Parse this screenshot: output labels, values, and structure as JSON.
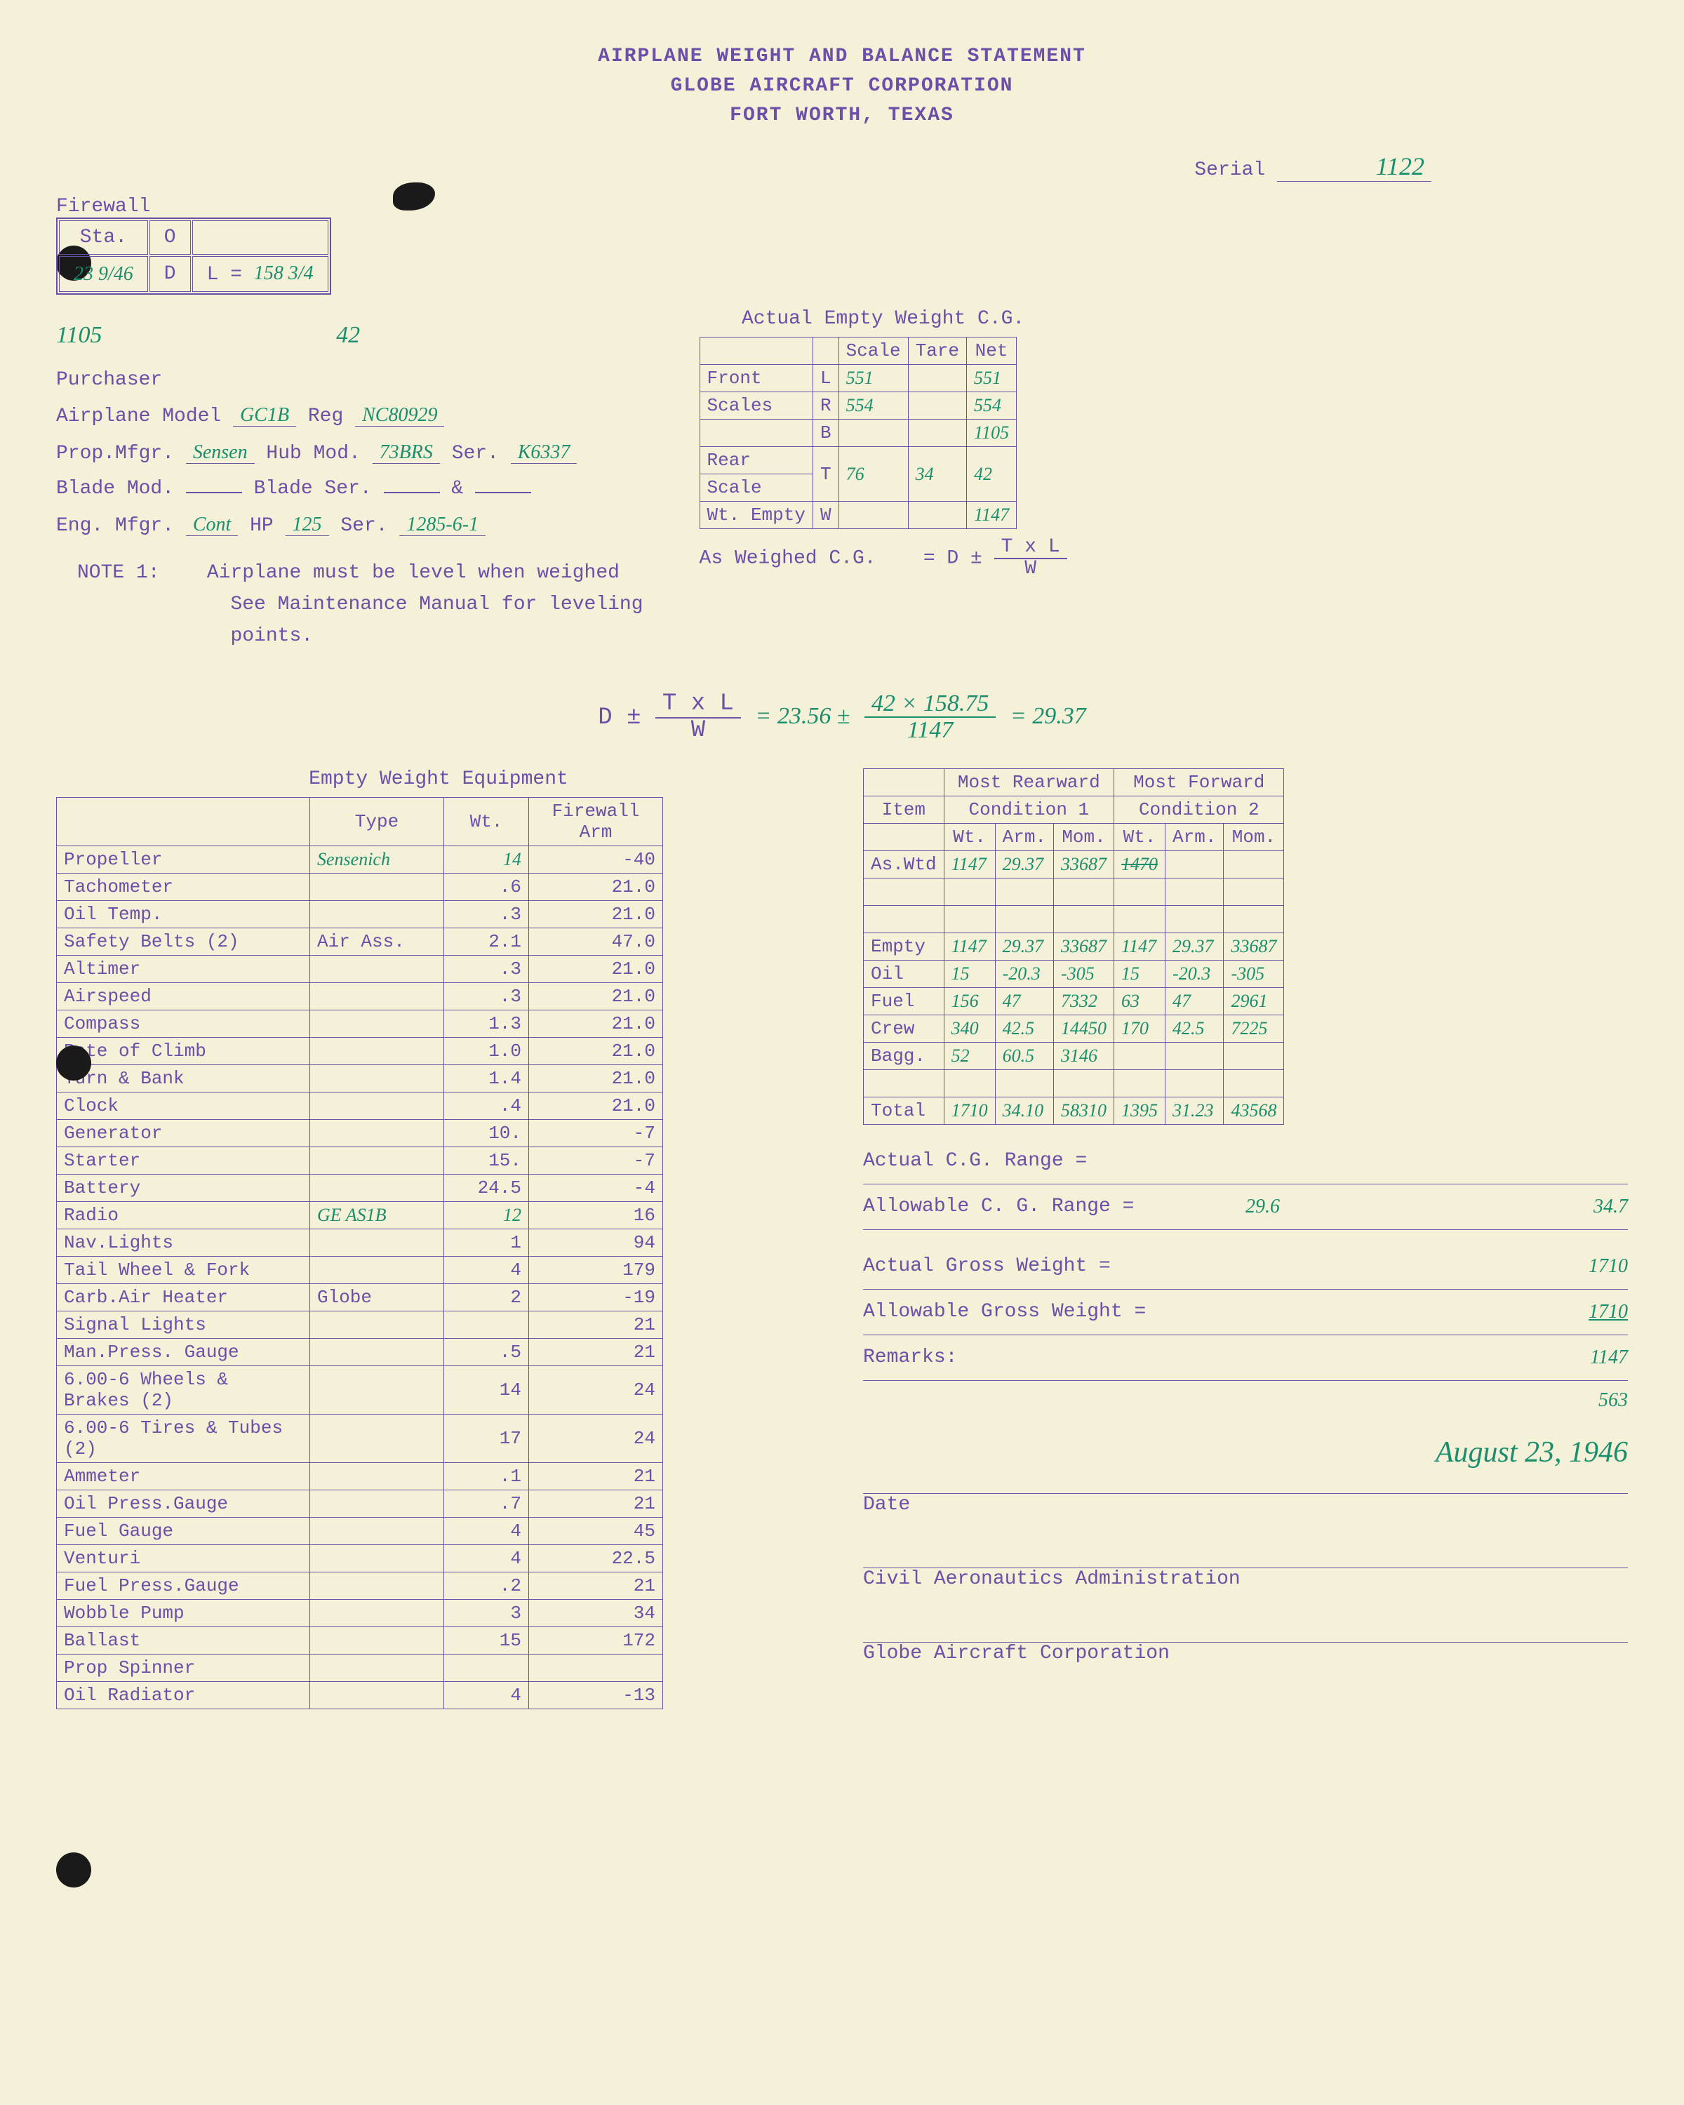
{
  "header": {
    "line1": "AIRPLANE WEIGHT AND BALANCE STATEMENT",
    "line2": "GLOBE AIRCRAFT CORPORATION",
    "line3": "FORT WORTH, TEXAS"
  },
  "serial": {
    "label": "Serial",
    "value": "1122"
  },
  "firewall": {
    "title": "Firewall",
    "sta_label": "Sta.",
    "o_label": "O",
    "d_label": "D",
    "l_label": "L =",
    "date": "23 9/46",
    "lval": "158 3/4",
    "below1": "1105",
    "below2": "42"
  },
  "info": {
    "purchaser_label": "Purchaser",
    "model_label": "Airplane Model",
    "model": "GC1B",
    "reg_label": "Reg",
    "reg": "NC80929",
    "propmfg_label": "Prop.Mfgr.",
    "propmfg": "Sensen",
    "hubmod_label": "Hub Mod.",
    "hubmod": "73BRS",
    "ser_label": "Ser.",
    "hubser": "K6337",
    "blademod_label": "Blade Mod.",
    "bladeser_label": "Blade Ser.",
    "amp": "&",
    "engmfg_label": "Eng. Mfgr.",
    "engmfg": "Cont",
    "hp_label": "HP",
    "hp": "125",
    "engser": "1285-6-1"
  },
  "note": {
    "label": "NOTE 1:",
    "text1": "Airplane must be level when weighed",
    "text2": "See Maintenance Manual for leveling",
    "text3": "points."
  },
  "scaletable": {
    "title": "Actual Empty Weight C.G.",
    "h_scale": "Scale",
    "h_tare": "Tare",
    "h_net": "Net",
    "front_label": "Front",
    "scales_label": "Scales",
    "rear_label": "Rear",
    "scale_label": "Scale",
    "wtempty_label": "Wt. Empty",
    "L": "L",
    "R": "R",
    "B": "B",
    "T": "T",
    "W": "W",
    "front_scale": "551",
    "front_net": "551",
    "scales_scale": "554",
    "scales_net": "554",
    "b_net": "1105",
    "rear_scale": "76",
    "rear_tare": "34",
    "rear_net": "42",
    "wtempty_net": "1147",
    "formula_label": "As Weighed C.G.",
    "formula_eq": "= D ±",
    "formula_num": "T x L",
    "formula_den": "W"
  },
  "calc": {
    "lhs_num": "T x L",
    "lhs_den": "W",
    "dpm": "D ±",
    "d": "23.56 ±",
    "num": "42 × 158.75",
    "den": "1147",
    "result": "= 29.37"
  },
  "equip": {
    "title": "Empty Weight Equipment",
    "h_type": "Type",
    "h_wt": "Wt.",
    "h_arm": "Firewall\nArm",
    "rows": [
      {
        "n": "Propeller",
        "t": "Sensenich",
        "w": "14",
        "a": "-40"
      },
      {
        "n": "Tachometer",
        "t": "",
        "w": ".6",
        "a": "21.0"
      },
      {
        "n": "Oil Temp.",
        "t": "",
        "w": ".3",
        "a": "21.0"
      },
      {
        "n": "Safety Belts (2)",
        "t": "Air Ass.",
        "w": "2.1",
        "a": "47.0"
      },
      {
        "n": "Altimer",
        "t": "",
        "w": ".3",
        "a": "21.0"
      },
      {
        "n": "Airspeed",
        "t": "",
        "w": ".3",
        "a": "21.0"
      },
      {
        "n": "Compass",
        "t": "",
        "w": "1.3",
        "a": "21.0"
      },
      {
        "n": "Rate of Climb",
        "t": "",
        "w": "1.0",
        "a": "21.0"
      },
      {
        "n": "Turn & Bank",
        "t": "",
        "w": "1.4",
        "a": "21.0"
      },
      {
        "n": "Clock",
        "t": "",
        "w": ".4",
        "a": "21.0"
      },
      {
        "n": "Generator",
        "t": "",
        "w": "10.",
        "a": "-7"
      },
      {
        "n": "Starter",
        "t": "",
        "w": "15.",
        "a": "-7"
      },
      {
        "n": "Battery",
        "t": "",
        "w": "24.5",
        "a": "-4"
      },
      {
        "n": "Radio",
        "t": "GE AS1B",
        "w": "12",
        "a": "16"
      },
      {
        "n": "Nav.Lights",
        "t": "",
        "w": "1",
        "a": "94"
      },
      {
        "n": "Tail Wheel & Fork",
        "t": "",
        "w": "4",
        "a": "179"
      },
      {
        "n": "Carb.Air Heater",
        "t": "Globe",
        "w": "2",
        "a": "-19"
      },
      {
        "n": "Signal Lights",
        "t": "",
        "w": "",
        "a": "21"
      },
      {
        "n": "Man.Press. Gauge",
        "t": "",
        "w": ".5",
        "a": "21"
      },
      {
        "n": "6.00-6 Wheels & Brakes (2)",
        "t": "",
        "w": "14",
        "a": "24"
      },
      {
        "n": "6.00-6 Tires & Tubes (2)",
        "t": "",
        "w": "17",
        "a": "24"
      },
      {
        "n": "Ammeter",
        "t": "",
        "w": ".1",
        "a": "21"
      },
      {
        "n": "Oil Press.Gauge",
        "t": "",
        "w": ".7",
        "a": "21"
      },
      {
        "n": "Fuel Gauge",
        "t": "",
        "w": "4",
        "a": "45"
      },
      {
        "n": "Venturi",
        "t": "",
        "w": "4",
        "a": "22.5"
      },
      {
        "n": "Fuel Press.Gauge",
        "t": "",
        "w": ".2",
        "a": "21"
      },
      {
        "n": "Wobble Pump",
        "t": "",
        "w": "3",
        "a": "34"
      },
      {
        "n": "Ballast",
        "t": "",
        "w": "15",
        "a": "172"
      },
      {
        "n": "Prop Spinner",
        "t": "",
        "w": "",
        "a": ""
      },
      {
        "n": "Oil Radiator",
        "t": "",
        "w": "4",
        "a": "-13"
      }
    ]
  },
  "cond": {
    "h_rear": "Most Rearward",
    "h_fwd": "Most Forward",
    "h_item": "Item",
    "h_c1": "Condition 1",
    "h_c2": "Condition 2",
    "h_wt": "Wt.",
    "h_arm": "Arm.",
    "h_mom": "Mom.",
    "aswtd_label": "As.Wtd",
    "aswtd": {
      "w1": "1147",
      "a1": "29.37",
      "m1": "33687",
      "w2": "",
      "a2": "",
      "m2": ""
    },
    "empty_label": "Empty",
    "empty": {
      "w1": "1147",
      "a1": "29.37",
      "m1": "33687",
      "w2": "1147",
      "a2": "29.37",
      "m2": "33687"
    },
    "oil_label": "Oil",
    "oil": {
      "w1": "15",
      "a1": "-20.3",
      "m1": "-305",
      "w2": "15",
      "a2": "-20.3",
      "m2": "-305"
    },
    "fuel_label": "Fuel",
    "fuel": {
      "w1": "156",
      "a1": "47",
      "m1": "7332",
      "w2": "63",
      "a2": "47",
      "m2": "2961"
    },
    "crew_label": "Crew",
    "crew": {
      "w1": "340",
      "a1": "42.5",
      "m1": "14450",
      "8": "",
      "w2": "170",
      "a2": "42.5",
      "m2": "7225"
    },
    "bagg_label": "Bagg.",
    "bagg": {
      "w1": "52",
      "a1": "60.5",
      "m1": "3146",
      "w2": "",
      "a2": "",
      "m2": ""
    },
    "total_label": "Total",
    "total": {
      "w1": "1710",
      "a1": "34.10",
      "m1": "58310",
      "w2": "1395",
      "a2": "31.23",
      "m2": "43568"
    }
  },
  "ranges": {
    "actual_cg_label": "Actual C.G. Range =",
    "allow_cg_label": "Allowable C. G. Range =",
    "allow_cg_lo": "29.6",
    "allow_cg_hi": "34.7",
    "actual_gw_label": "Actual Gross Weight =",
    "actual_gw": "1710",
    "allow_gw_label": "Allowable Gross Weight =",
    "allow_gw": "1710",
    "remarks_label": "Remarks:",
    "remarks1": "1147",
    "remarks2": "563"
  },
  "sigs": {
    "date_written": "August 23, 1946",
    "date_label": "Date",
    "caa": "Civil Aeronautics Administration",
    "gac": "Globe Aircraft Corporation"
  },
  "colors": {
    "paper": "#f5f0d8",
    "typed": "#6b4fa8",
    "handwritten": "#1a8f6e",
    "punch": "#1a1a1a"
  }
}
